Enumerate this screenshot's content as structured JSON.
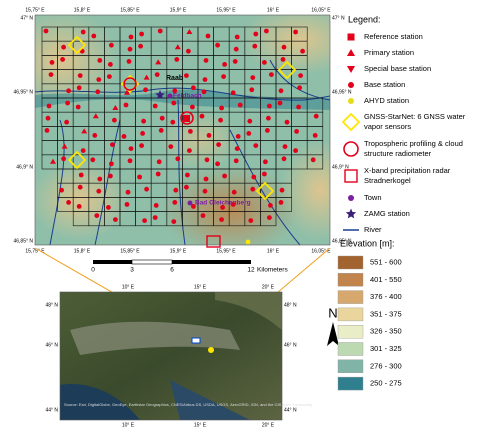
{
  "main_map": {
    "lon_ticks": [
      "15,75° E",
      "15,8° E",
      "15,85° E",
      "15,9° E",
      "15,95° E",
      "16° E",
      "16,05° E"
    ],
    "lat_ticks": [
      "47° N",
      "46,95° N",
      "46,9° N",
      "46,85° N"
    ],
    "river_label": "Raab",
    "towns": [
      "Feldbach",
      "Bad Gleichenberg"
    ],
    "scale_bar": {
      "ticks": [
        0,
        3,
        6,
        12
      ],
      "unit": "Kilometers"
    }
  },
  "legend": {
    "title": "Legend:",
    "items": [
      {
        "symbol": "square",
        "lines": [
          "Reference station"
        ]
      },
      {
        "symbol": "triangle-up",
        "lines": [
          "Primary station"
        ]
      },
      {
        "symbol": "triangle-down",
        "lines": [
          "Special base station"
        ]
      },
      {
        "symbol": "dot",
        "lines": [
          "Base station"
        ]
      },
      {
        "symbol": "yellow-dot",
        "lines": [
          "AHYD station"
        ]
      },
      {
        "symbol": "diamond",
        "lines": [
          "GNSS-StarNet: 6 GNSS water",
          "vapor sensors"
        ]
      },
      {
        "symbol": "ring",
        "lines": [
          "Tropospheric profiling & cloud",
          "structure radiometer"
        ]
      },
      {
        "symbol": "open-square",
        "lines": [
          "X-band precipitation radar",
          "Stradnerkogel"
        ]
      },
      {
        "symbol": "town",
        "lines": [
          "Town"
        ]
      },
      {
        "symbol": "star",
        "lines": [
          "ZAMG station"
        ]
      },
      {
        "symbol": "river",
        "lines": [
          "River"
        ]
      }
    ]
  },
  "elevation": {
    "title": "Elevation [m]:",
    "classes": [
      {
        "label": "551 - 600",
        "color": "#a3632f"
      },
      {
        "label": "401 - 550",
        "color": "#c0844c"
      },
      {
        "label": "376 - 400",
        "color": "#d6a86e"
      },
      {
        "label": "351 - 375",
        "color": "#ead69c"
      },
      {
        "label": "326 - 350",
        "color": "#eaeec8"
      },
      {
        "label": "301 - 325",
        "color": "#bcd9b2"
      },
      {
        "label": "276 - 300",
        "color": "#80b4a7"
      },
      {
        "label": "250 - 275",
        "color": "#2f7f8f"
      }
    ]
  },
  "north": "N",
  "inset": {
    "lon_ticks": [
      "10° E",
      "15° E",
      "20° E"
    ],
    "lat_ticks": [
      "48° N",
      "46° N",
      "44° N"
    ],
    "source": "Source: Esri, DigitalGlobe, GeoEye, Earthstar Geographics, CNES/Airbus DS, USDA, USGS, AeroGRID, IGN, and the GIS User Community"
  }
}
